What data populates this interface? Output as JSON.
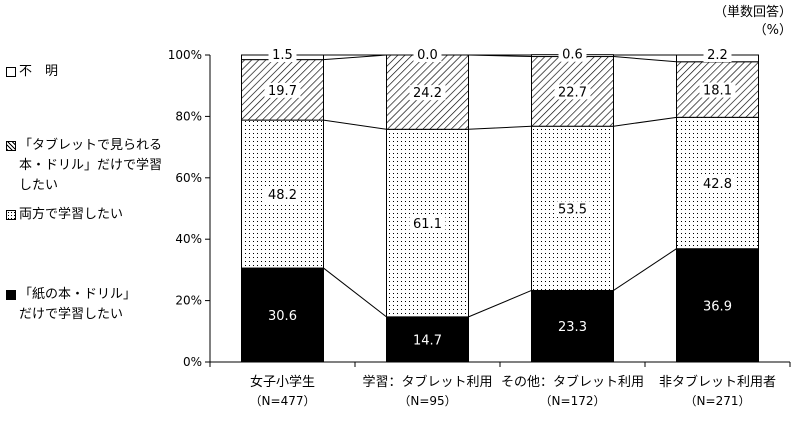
{
  "chart_data": {
    "type": "bar",
    "stacked": true,
    "percent": true,
    "unit_note": "（単数回答）\n（%）",
    "categories": [
      {
        "name": "女子小学生",
        "n": "（N=477）"
      },
      {
        "name": "学習：タブレット利用",
        "n": "（N=95）"
      },
      {
        "name": "その他：タブレット利用",
        "n": "（N=172）"
      },
      {
        "name": "非タブレット利用者",
        "n": "（N=271）"
      }
    ],
    "series": [
      {
        "name": "「紙の本・ドリル」\nだけで学習したい",
        "pattern": "solid",
        "color": "#000000",
        "values": [
          30.6,
          14.7,
          23.3,
          36.9
        ],
        "labels": [
          "30.6",
          "14.7",
          "23.3",
          "36.9"
        ]
      },
      {
        "name": "両方で学習したい",
        "pattern": "dots",
        "color": "#000000",
        "values": [
          48.2,
          61.1,
          53.5,
          42.8
        ],
        "labels": [
          "48.2",
          "61.1",
          "53.5",
          "42.8"
        ]
      },
      {
        "name": "「タブレットで見られる\n本・ドリル」だけで学習\nしたい",
        "pattern": "hatch",
        "color": "#000000",
        "values": [
          19.7,
          24.2,
          22.7,
          18.1
        ],
        "labels": [
          "19.7",
          "24.2",
          "22.7",
          "18.1"
        ]
      },
      {
        "name": "不　明",
        "pattern": "white",
        "color": "#ffffff",
        "values": [
          1.5,
          0.0,
          0.6,
          2.2
        ],
        "labels": [
          "1.5",
          "0.0",
          "0.6",
          "2.2"
        ]
      }
    ],
    "ylim": [
      0,
      100
    ],
    "yticks": [
      "0%",
      "20%",
      "40%",
      "60%",
      "80%",
      "100%"
    ],
    "grid": false,
    "connector_lines": true,
    "legend_position": "left"
  }
}
